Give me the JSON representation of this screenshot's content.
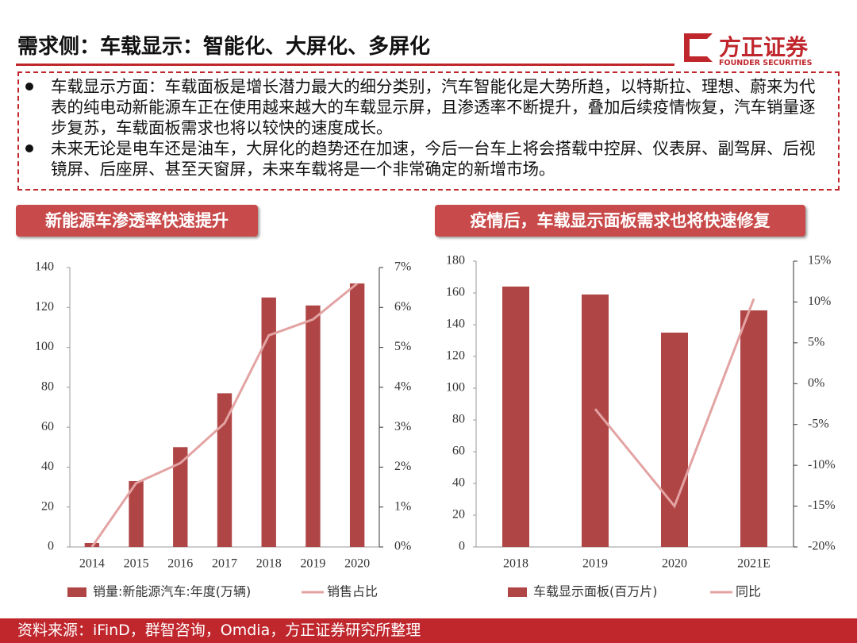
{
  "header": {
    "title": "需求侧：车载显示：智能化、大屏化、多屏化",
    "logo_name": "方正证券",
    "logo_subtitle": "FOUNDER SECURITIES"
  },
  "bullets": [
    "车载显示方面：车载面板是增长潜力最大的细分类别，汽车智能化是大势所趋，以特斯拉、理想、蔚来为代表的纯电动新能源车正在使用越来越大的车载显示屏，且渗透率不断提升，叠加后续疫情恢复，汽车销量逐步复苏，车载面板需求也将以较快的速度成长。",
    "未来无论是电车还是油车，大屏化的趋势还在加速，今后一台车上将会搭载中控屏、仪表屏、副驾屏、后视镜屏、后座屏、甚至天窗屏，未来车载将是一个非常确定的新增市场。"
  ],
  "sections": [
    "新能源车渗透率快速提升",
    "疫情后，车载显示面板需求也将快速修复"
  ],
  "chart_data": [
    {
      "type": "bar",
      "categories": [
        "2014",
        "2015",
        "2016",
        "2017",
        "2018",
        "2019",
        "2020"
      ],
      "series": [
        {
          "name": "销量:新能源汽车:年度(万辆)",
          "type": "bar",
          "color": "#b04545",
          "values": [
            2,
            33,
            50,
            77,
            125,
            121,
            132
          ]
        },
        {
          "name": "销售占比",
          "type": "line",
          "axis": "y2",
          "color": "#e3a3a3",
          "values": [
            0,
            1.6,
            2.1,
            3.1,
            5.3,
            5.7,
            6.6
          ]
        }
      ],
      "ylim": [
        0,
        140
      ],
      "yticks": [
        0,
        20,
        40,
        60,
        80,
        100,
        120,
        140
      ],
      "y2lim": [
        0,
        7
      ],
      "y2ticks": [
        {
          "value": 0,
          "label": "0%"
        },
        {
          "value": 1,
          "label": "1%"
        },
        {
          "value": 2,
          "label": "2%"
        },
        {
          "value": 3,
          "label": "3%"
        },
        {
          "value": 4,
          "label": "4%"
        },
        {
          "value": 5,
          "label": "5%"
        },
        {
          "value": 6,
          "label": "6%"
        },
        {
          "value": 7,
          "label": "7%"
        }
      ]
    },
    {
      "type": "bar",
      "categories": [
        "2018",
        "2019",
        "2020",
        "2021E"
      ],
      "series": [
        {
          "name": "车载显示面板(百万片)",
          "type": "bar",
          "color": "#b04545",
          "values": [
            164,
            159,
            135,
            149
          ]
        },
        {
          "name": "同比",
          "type": "line",
          "axis": "y2",
          "color": "#e3a3a3",
          "values": [
            null,
            -3.1,
            -15,
            10.4
          ]
        }
      ],
      "ylim": [
        0,
        180
      ],
      "yticks": [
        0,
        20,
        40,
        60,
        80,
        100,
        120,
        140,
        160,
        180
      ],
      "y2lim": [
        -20,
        15
      ],
      "y2ticks": [
        {
          "value": -20,
          "label": "-20%"
        },
        {
          "value": -15,
          "label": "-15%"
        },
        {
          "value": -10,
          "label": "-10%"
        },
        {
          "value": -5,
          "label": "-5%"
        },
        {
          "value": 0,
          "label": "0%"
        },
        {
          "value": 5,
          "label": "5%"
        },
        {
          "value": 10,
          "label": "10%"
        },
        {
          "value": 15,
          "label": "15%"
        }
      ]
    }
  ],
  "footer": {
    "source": "资料来源：iFinD，群智咨询，Omdia，方正证券研究所整理"
  }
}
